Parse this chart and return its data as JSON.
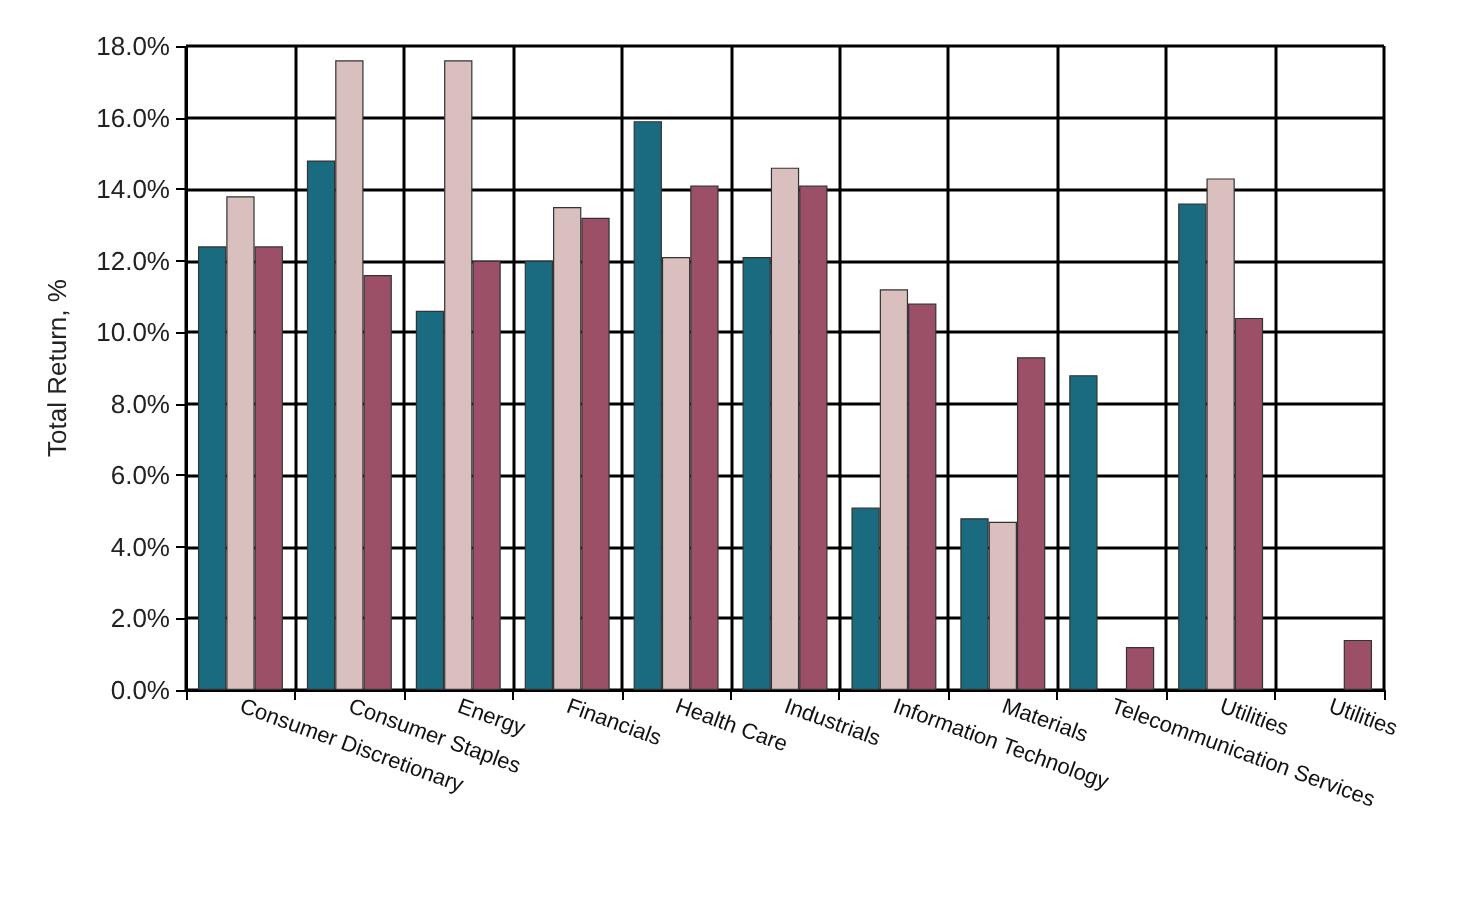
{
  "chart_data": {
    "type": "bar",
    "ylabel": "Total Return, %",
    "categories": [
      "Consumer Discretionary",
      "Consumer Staples",
      "Energy",
      "Financials",
      "Health Care",
      "Industrials",
      "Information Technology",
      "Materials",
      "Telecommunication Services",
      "Utilities",
      "Utilities"
    ],
    "series": [
      {
        "color": "#1b6b80",
        "values": [
          12.4,
          14.8,
          10.6,
          12.0,
          15.9,
          12.1,
          5.1,
          4.8,
          8.8,
          13.6,
          null
        ]
      },
      {
        "color": "#d9bfbd",
        "values": [
          13.8,
          17.6,
          17.6,
          13.5,
          12.1,
          14.6,
          11.2,
          4.7,
          null,
          14.3,
          null
        ]
      },
      {
        "color": "#9c5068",
        "values": [
          12.4,
          11.6,
          12.0,
          13.2,
          14.1,
          14.1,
          10.8,
          9.3,
          1.2,
          10.4,
          1.4
        ]
      }
    ],
    "ylim": [
      0,
      18
    ],
    "yticks": [
      {
        "value": 0,
        "label": "0.0%"
      },
      {
        "value": 2,
        "label": "2.0%"
      },
      {
        "value": 4,
        "label": "4.0%"
      },
      {
        "value": 6,
        "label": "6.0%"
      },
      {
        "value": 8,
        "label": "8.0%"
      },
      {
        "value": 10,
        "label": "10.0%"
      },
      {
        "value": 12,
        "label": "12.0%"
      },
      {
        "value": 14,
        "label": "14.0%"
      },
      {
        "value": 16,
        "label": "16.0%"
      },
      {
        "value": 18,
        "label": "18.0%"
      }
    ],
    "grid": true
  }
}
